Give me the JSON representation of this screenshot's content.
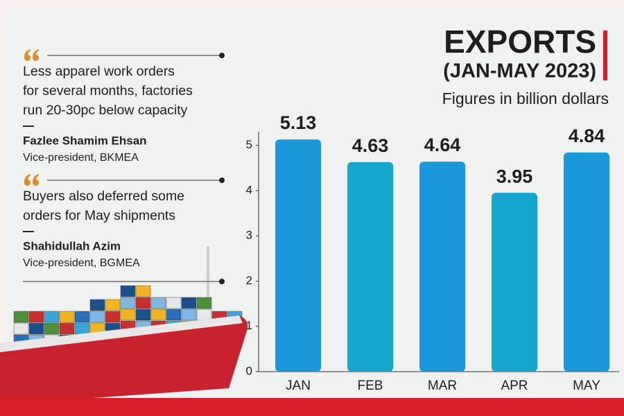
{
  "chart_data": {
    "type": "bar",
    "title": "EXPORTS",
    "subtitle": "(JAN-MAY 2023)",
    "y_label": "Figures in billion dollars",
    "categories": [
      "JAN",
      "FEB",
      "MAR",
      "APR",
      "MAY"
    ],
    "values": [
      5.13,
      4.63,
      4.64,
      3.95,
      4.84
    ],
    "colors": [
      "#1b98d8",
      "#16a5cc",
      "#1b98d8",
      "#16a5cc",
      "#1b98d8"
    ],
    "ylim": [
      0,
      5.3
    ],
    "yticks": [
      0,
      1,
      2,
      3,
      4,
      5
    ],
    "grid": false
  },
  "quotes": [
    {
      "lines": [
        "Less apparel work orders",
        "for several months, factories",
        "run 20-30pc below capacity"
      ],
      "author": "Fazlee Shamim Ehsan",
      "role": "Vice-president, BKMEA"
    },
    {
      "lines": [
        "Buyers also deferred some",
        "orders for May shipments"
      ],
      "author": "Shahidullah Azim",
      "role": "Vice-president, BGMEA"
    }
  ]
}
